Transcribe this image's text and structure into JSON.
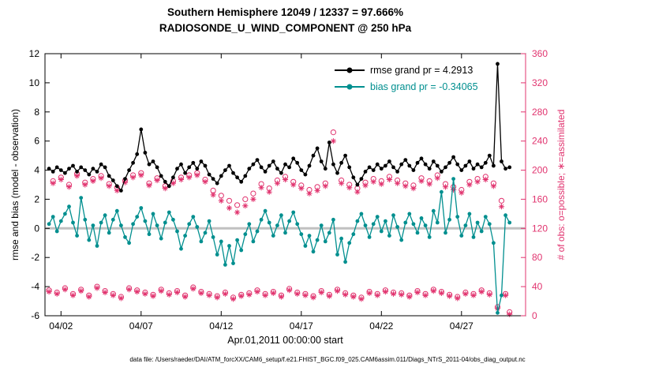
{
  "footer": {
    "data_file": "data file: /Users/raeder/DAI/ATM_forcXX/CAM6_setup/f.e21.FHIST_BGC.f09_025.CAM6assim.011/Diags_NTrS_2011-04/obs_diag_output.nc"
  },
  "chart_data": {
    "type": "line",
    "title": "Southern Hemisphere 12049 / 12337 = 97.666%",
    "subtitle": "RADIOSONDE_U_WIND_COMPONENT @ 250 hPa",
    "xlabel": "Apr.01,2011 00:00:00 start",
    "ylabel_left": "rmse and bias (model - observation)",
    "ylabel_right": "# of obs: o=possible; ∗=assimilated",
    "xlim": [
      1,
      31
    ],
    "ylim_left": [
      -6,
      12
    ],
    "ylim_right": [
      0,
      360
    ],
    "x_ticks": [
      2,
      7,
      12,
      17,
      22,
      27
    ],
    "x_tick_labels": [
      "04/02",
      "04/07",
      "04/12",
      "04/17",
      "04/22",
      "04/27"
    ],
    "y_left_ticks": [
      -6,
      -4,
      -2,
      0,
      2,
      4,
      6,
      8,
      10,
      12
    ],
    "y_right_ticks": [
      0,
      40,
      80,
      120,
      160,
      200,
      240,
      280,
      320,
      360
    ],
    "grid": false,
    "legend_position": "top-right-inside",
    "legend": [
      {
        "label": "rmse grand pr = 4.2913",
        "color": "#000000"
      },
      {
        "label": "bias grand pr = -0.34065",
        "color": "#008f8f"
      }
    ],
    "colors": {
      "rmse": "#000000",
      "bias": "#008f8f",
      "obs": "#e1346f",
      "zero_line": "#c0c0c0"
    },
    "x": [
      1.25,
      1.5,
      1.75,
      2,
      2.25,
      2.5,
      2.75,
      3,
      3.25,
      3.5,
      3.75,
      4,
      4.25,
      4.5,
      4.75,
      5,
      5.25,
      5.5,
      5.75,
      6,
      6.25,
      6.5,
      6.75,
      7,
      7.25,
      7.5,
      7.75,
      8,
      8.25,
      8.5,
      8.75,
      9,
      9.25,
      9.5,
      9.75,
      10,
      10.25,
      10.5,
      10.75,
      11,
      11.25,
      11.5,
      11.75,
      12,
      12.25,
      12.5,
      12.75,
      13,
      13.25,
      13.5,
      13.75,
      14,
      14.25,
      14.5,
      14.75,
      15,
      15.25,
      15.5,
      15.75,
      16,
      16.25,
      16.5,
      16.75,
      17,
      17.25,
      17.5,
      17.75,
      18,
      18.25,
      18.5,
      18.75,
      19,
      19.25,
      19.5,
      19.75,
      20,
      20.25,
      20.5,
      20.75,
      21,
      21.25,
      21.5,
      21.75,
      22,
      22.25,
      22.5,
      22.75,
      23,
      23.25,
      23.5,
      23.75,
      24,
      24.25,
      24.5,
      24.75,
      25,
      25.25,
      25.5,
      25.75,
      26,
      26.25,
      26.5,
      26.75,
      27,
      27.25,
      27.5,
      27.75,
      28,
      28.25,
      28.5,
      28.75,
      29,
      29.25,
      29.5,
      29.75,
      30
    ],
    "series": [
      {
        "name": "rmse",
        "axis": "left",
        "style": "line+dot",
        "values": [
          4.1,
          3.9,
          4.2,
          4.0,
          3.8,
          4.1,
          4.3,
          3.9,
          4.2,
          4.0,
          3.7,
          4.1,
          3.9,
          4.4,
          4.2,
          3.6,
          3.3,
          2.9,
          2.6,
          3.4,
          4.0,
          4.5,
          5.1,
          6.8,
          5.2,
          4.4,
          4.6,
          4.2,
          3.6,
          3.2,
          2.9,
          3.5,
          4.1,
          4.4,
          3.8,
          4.2,
          4.5,
          4.1,
          4.6,
          4.3,
          3.7,
          3.4,
          3.1,
          3.6,
          4.0,
          4.3,
          3.8,
          3.5,
          3.2,
          3.6,
          4.1,
          4.4,
          4.7,
          4.2,
          3.9,
          4.3,
          4.6,
          4.1,
          3.8,
          4.4,
          4.2,
          4.8,
          4.5,
          4.0,
          3.7,
          4.3,
          5.0,
          5.5,
          4.6,
          4.1,
          5.9,
          4.4,
          3.8,
          4.5,
          5.0,
          4.2,
          3.5,
          3.0,
          3.4,
          3.9,
          4.2,
          4.0,
          4.4,
          4.1,
          4.3,
          4.6,
          4.2,
          3.9,
          4.4,
          4.7,
          4.3,
          4.0,
          4.5,
          4.8,
          4.4,
          4.1,
          4.6,
          4.3,
          3.9,
          4.2,
          4.5,
          4.9,
          4.4,
          4.0,
          4.3,
          4.6,
          4.1,
          4.4,
          4.2,
          4.5,
          5.0,
          4.3,
          11.3,
          4.6,
          4.1,
          4.2
        ]
      },
      {
        "name": "bias",
        "axis": "left",
        "style": "line+dot",
        "values": [
          0.3,
          0.8,
          -0.2,
          0.5,
          1.0,
          1.5,
          0.4,
          -0.5,
          2.1,
          0.6,
          -0.8,
          0.2,
          -1.2,
          0.4,
          0.9,
          -0.3,
          0.6,
          1.2,
          0.2,
          -0.6,
          -1.0,
          0.3,
          0.8,
          1.4,
          0.5,
          -0.4,
          1.0,
          0.2,
          -0.7,
          0.4,
          1.1,
          0.6,
          -0.2,
          -1.4,
          -0.5,
          0.3,
          0.8,
          0.1,
          -0.9,
          -0.3,
          0.5,
          -0.6,
          -1.8,
          -0.9,
          -2.5,
          -1.2,
          -2.4,
          -0.8,
          -1.5,
          -0.4,
          0.3,
          -0.9,
          -0.2,
          0.6,
          1.2,
          0.4,
          -0.5,
          0.2,
          0.9,
          -0.3,
          0.5,
          1.1,
          0.3,
          -0.4,
          -1.2,
          -0.5,
          -1.6,
          -0.8,
          0.2,
          -0.9,
          -0.3,
          0.6,
          -1.8,
          -0.7,
          -2.3,
          -1.0,
          -0.4,
          0.5,
          1.0,
          0.2,
          -0.6,
          0.3,
          0.8,
          -0.2,
          0.5,
          -0.5,
          0.9,
          0.1,
          -0.8,
          0.4,
          1.0,
          0.3,
          -0.3,
          0.7,
          0.2,
          -0.6,
          1.2,
          0.4,
          2.5,
          -0.3,
          0.6,
          3.4,
          0.8,
          -0.5,
          0.2,
          1.0,
          -0.6,
          0.4,
          -0.2,
          0.8,
          0.3,
          -1.0,
          -5.8,
          -4.6,
          0.9,
          0.4
        ]
      },
      {
        "name": "obs_possible",
        "axis": "right",
        "style": "circle",
        "values": [
          35,
          185,
          32,
          190,
          38,
          180,
          30,
          195,
          36,
          183,
          28,
          188,
          40,
          192,
          34,
          181,
          30,
          176,
          26,
          186,
          38,
          193,
          35,
          196,
          32,
          182,
          29,
          189,
          36,
          178,
          31,
          185,
          34,
          190,
          28,
          193,
          39,
          196,
          33,
          187,
          30,
          172,
          27,
          165,
          32,
          158,
          25,
          152,
          29,
          160,
          31,
          168,
          35,
          181,
          30,
          175,
          33,
          186,
          28,
          191,
          37,
          184,
          32,
          179,
          30,
          173,
          27,
          177,
          34,
          182,
          29,
          252,
          36,
          186,
          31,
          180,
          28,
          175,
          25,
          183,
          33,
          188,
          30,
          185,
          35,
          191,
          32,
          186,
          31,
          182,
          28,
          179,
          34,
          189,
          30,
          185,
          36,
          193,
          33,
          181,
          29,
          177,
          26,
          173,
          32,
          184,
          30,
          188,
          35,
          191,
          31,
          182,
          12,
          158,
          30,
          5
        ]
      },
      {
        "name": "obs_assimilated",
        "axis": "right",
        "style": "asterisk",
        "values": [
          33,
          182,
          30,
          187,
          36,
          177,
          28,
          192,
          34,
          180,
          26,
          185,
          38,
          189,
          32,
          178,
          28,
          172,
          24,
          183,
          36,
          190,
          33,
          193,
          30,
          179,
          27,
          186,
          34,
          175,
          29,
          182,
          32,
          187,
          26,
          190,
          37,
          193,
          31,
          184,
          28,
          166,
          25,
          158,
          30,
          148,
          23,
          142,
          27,
          151,
          29,
          160,
          33,
          176,
          28,
          170,
          31,
          182,
          26,
          187,
          35,
          180,
          30,
          175,
          28,
          168,
          25,
          172,
          32,
          178,
          27,
          240,
          34,
          182,
          29,
          176,
          26,
          170,
          23,
          179,
          31,
          184,
          28,
          181,
          33,
          187,
          30,
          182,
          29,
          178,
          26,
          175,
          32,
          185,
          28,
          181,
          34,
          189,
          31,
          177,
          27,
          173,
          24,
          169,
          30,
          180,
          28,
          184,
          33,
          187,
          29,
          178,
          10,
          150,
          28,
          2
        ]
      }
    ]
  }
}
